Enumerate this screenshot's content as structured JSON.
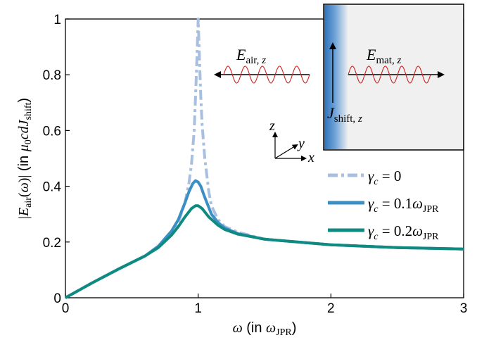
{
  "chart_data": {
    "type": "line",
    "title": "",
    "xlabel": "ω (in ω_JPR)",
    "ylabel": "|E_air(ω)| (in μ0 c d J_shift)",
    "xlim": [
      0,
      3
    ],
    "ylim": [
      0,
      1
    ],
    "x_ticks": [
      "0",
      "1",
      "2",
      "3"
    ],
    "y_ticks": [
      "0",
      "0.2",
      "0.4",
      "0.6",
      "0.8",
      "1"
    ],
    "grid": false,
    "legend_position": "right",
    "series": [
      {
        "name": "γc = 0",
        "color": "#a8bfe0",
        "style": "dash-dot",
        "x": [
          0,
          0.2,
          0.4,
          0.6,
          0.7,
          0.8,
          0.85,
          0.9,
          0.93,
          0.95,
          0.97,
          0.98,
          0.99,
          1.0,
          1.01,
          1.02,
          1.03,
          1.05,
          1.08,
          1.1,
          1.15,
          1.2,
          1.3,
          1.5,
          2.0,
          2.5,
          3.0
        ],
        "y": [
          0,
          0.053,
          0.103,
          0.15,
          0.185,
          0.235,
          0.27,
          0.34,
          0.41,
          0.48,
          0.6,
          0.72,
          0.85,
          1.0,
          0.85,
          0.72,
          0.62,
          0.5,
          0.38,
          0.33,
          0.28,
          0.255,
          0.235,
          0.21,
          0.19,
          0.18,
          0.175
        ]
      },
      {
        "name": "γc = 0.1ω_JPR",
        "color": "#3b8fc4",
        "style": "solid",
        "x": [
          0,
          0.2,
          0.4,
          0.6,
          0.7,
          0.8,
          0.85,
          0.9,
          0.93,
          0.96,
          0.98,
          1.0,
          1.02,
          1.05,
          1.1,
          1.15,
          1.2,
          1.3,
          1.5,
          2.0,
          2.5,
          3.0
        ],
        "y": [
          0,
          0.053,
          0.103,
          0.15,
          0.185,
          0.24,
          0.28,
          0.34,
          0.38,
          0.41,
          0.42,
          0.415,
          0.4,
          0.36,
          0.3,
          0.27,
          0.25,
          0.23,
          0.21,
          0.19,
          0.18,
          0.175
        ]
      },
      {
        "name": "γc = 0.2ω_JPR",
        "color": "#0f8a80",
        "style": "solid",
        "x": [
          0,
          0.2,
          0.4,
          0.6,
          0.7,
          0.8,
          0.85,
          0.9,
          0.95,
          0.98,
          1.0,
          1.03,
          1.08,
          1.15,
          1.2,
          1.3,
          1.5,
          2.0,
          2.5,
          3.0
        ],
        "y": [
          0,
          0.053,
          0.103,
          0.15,
          0.18,
          0.225,
          0.255,
          0.29,
          0.32,
          0.33,
          0.33,
          0.32,
          0.29,
          0.26,
          0.245,
          0.228,
          0.21,
          0.19,
          0.18,
          0.175
        ]
      }
    ]
  },
  "inset": {
    "e_air_label": "E_air, z",
    "e_mat_label": "E_mat, z",
    "j_shift_label": "J_shift, z",
    "axis_z": "z",
    "axis_y": "y",
    "axis_x": "x",
    "material_color": "#f0f0f0",
    "edge_color": "#2f72b8",
    "wave_color": "#d02020"
  }
}
